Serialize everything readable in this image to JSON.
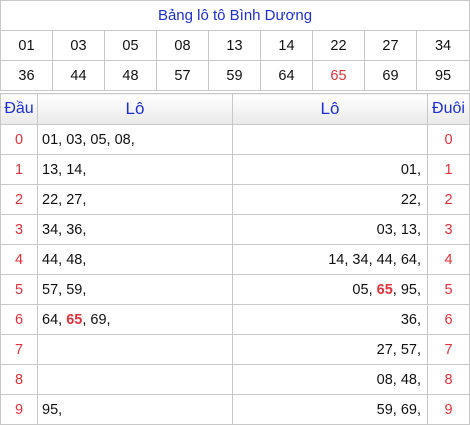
{
  "title": "Bảng lô tô Bình Dương",
  "numbers_row1": [
    "01",
    "03",
    "05",
    "08",
    "13",
    "14",
    "22",
    "27",
    "34"
  ],
  "numbers_row2": [
    "36",
    "44",
    "48",
    "57",
    "59",
    "64",
    "65",
    "69",
    "95"
  ],
  "highlight_number": "65",
  "headers": {
    "dau": "Đầu",
    "lo_left": "Lô",
    "lo_right": "Lô",
    "duoi": "Đuôi"
  },
  "rows": [
    {
      "digit": "0",
      "dau": [
        "01",
        "03",
        "05",
        "08"
      ],
      "duoi": []
    },
    {
      "digit": "1",
      "dau": [
        "13",
        "14"
      ],
      "duoi": [
        "01"
      ]
    },
    {
      "digit": "2",
      "dau": [
        "22",
        "27"
      ],
      "duoi": [
        "22"
      ]
    },
    {
      "digit": "3",
      "dau": [
        "34",
        "36"
      ],
      "duoi": [
        "03",
        "13"
      ]
    },
    {
      "digit": "4",
      "dau": [
        "44",
        "48"
      ],
      "duoi": [
        "14",
        "34",
        "44",
        "64"
      ]
    },
    {
      "digit": "5",
      "dau": [
        "57",
        "59"
      ],
      "duoi": [
        "05",
        "65",
        "95"
      ]
    },
    {
      "digit": "6",
      "dau": [
        "64",
        "65",
        "69"
      ],
      "duoi": [
        "36"
      ]
    },
    {
      "digit": "7",
      "dau": [],
      "duoi": [
        "27",
        "57"
      ]
    },
    {
      "digit": "8",
      "dau": [],
      "duoi": [
        "08",
        "48"
      ]
    },
    {
      "digit": "9",
      "dau": [
        "95"
      ],
      "duoi": [
        "59",
        "69"
      ]
    }
  ],
  "colors": {
    "title_blue": "#1f2fd0",
    "digit_red": "#e0323c",
    "border": "#c8c8c8"
  }
}
